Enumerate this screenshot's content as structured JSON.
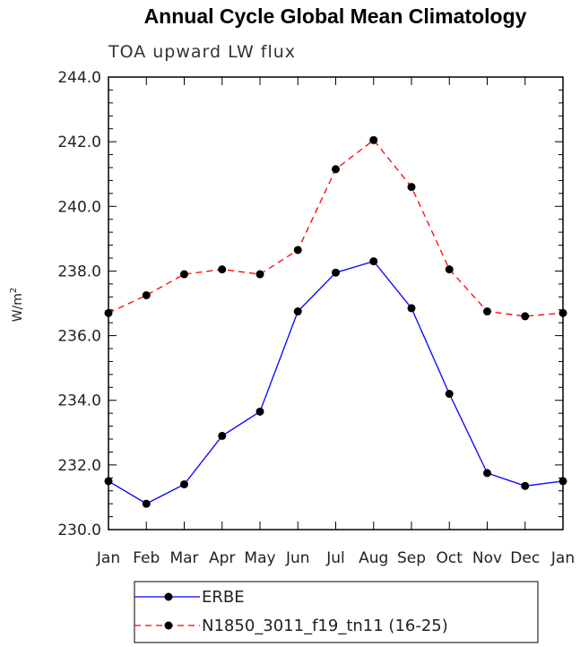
{
  "chart_data": {
    "type": "line",
    "title": "Annual Cycle Global Mean Climatology",
    "subtitle": "TOA upward LW flux",
    "ylabel": "W/m",
    "ylabel_superscript": "2",
    "xlabel": "",
    "categories": [
      "Jan",
      "Feb",
      "Mar",
      "Apr",
      "May",
      "Jun",
      "Jul",
      "Aug",
      "Sep",
      "Oct",
      "Nov",
      "Dec",
      "Jan"
    ],
    "ylim": [
      230.0,
      244.0
    ],
    "yticks": [
      "230.0",
      "232.0",
      "234.0",
      "236.0",
      "238.0",
      "240.0",
      "242.0",
      "244.0"
    ],
    "series": [
      {
        "name": "ERBE",
        "color": "#0000ff",
        "dash": "solid",
        "values": [
          231.5,
          230.8,
          231.4,
          232.9,
          233.65,
          236.75,
          237.95,
          238.3,
          236.85,
          234.2,
          231.75,
          231.35,
          231.5
        ]
      },
      {
        "name": "N1850_3011_f19_tn11 (16-25)",
        "color": "#ff0000",
        "dash": "dashed",
        "values": [
          236.7,
          237.25,
          237.9,
          238.05,
          237.9,
          238.65,
          241.15,
          242.05,
          240.6,
          238.05,
          236.75,
          236.6,
          236.7
        ]
      }
    ]
  }
}
